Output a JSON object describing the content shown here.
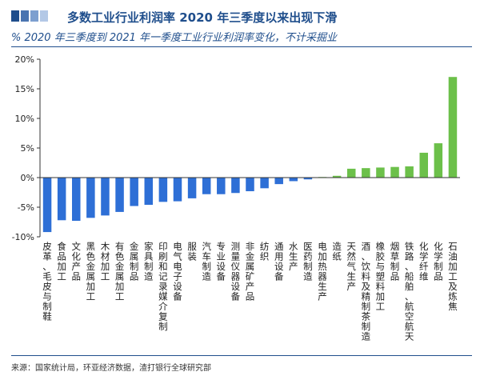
{
  "header": {
    "title": "多数工业行业利润率 2020 年三季度以来出现下滑",
    "subtitle": "% 2020 年三季度到 2021 年一季度工业行业利润率变化，不计采掘业",
    "logo_colors": [
      "#1f4e8c",
      "#4a74b0",
      "#7d9fcf",
      "#b3c8e6"
    ]
  },
  "footer": {
    "source": "来源：国家统计局，环亚经济数据，渣打银行全球研究部"
  },
  "colors": {
    "negative": "#2e6fd6",
    "positive": "#6cc04a",
    "title": "#1f4e8c"
  },
  "chart_data": {
    "type": "bar",
    "title": "",
    "xlabel": "",
    "ylabel": "",
    "ylim": [
      -10,
      20
    ],
    "yticks": [
      -10,
      -5,
      0,
      5,
      10,
      15,
      20
    ],
    "ytick_labels": [
      "-10%",
      "-5%",
      "0%",
      "5%",
      "10%",
      "15%",
      "20%"
    ],
    "grid": false,
    "categories": [
      "皮革、毛皮与制鞋",
      "食品加工",
      "文化产品",
      "黑色金属加工",
      "木材加工",
      "有色金属加工",
      "金属制品",
      "家具制造",
      "印刷和记录媒介复制",
      "电气电子设备",
      "服装",
      "汽车制造",
      "专业设备",
      "测量仪器设备",
      "非金属矿产品",
      "纺织",
      "通用设备",
      "水生产",
      "医药制造",
      "电加热器生产",
      "造纸",
      "天然气生产",
      "酒、饮料及精制茶制造",
      "橡胶与塑料加工",
      "烟草制品",
      "铁路、船舶、航空航天",
      "化学纤维",
      "化学制品",
      "石油加工及炼焦"
    ],
    "values": [
      -9.2,
      -7.2,
      -7.3,
      -6.8,
      -6.4,
      -5.8,
      -4.8,
      -4.6,
      -4.1,
      -4.0,
      -3.5,
      -2.8,
      -2.8,
      -2.6,
      -2.3,
      -1.8,
      -1.1,
      -0.6,
      -0.3,
      0.1,
      0.3,
      1.5,
      1.6,
      1.7,
      1.8,
      1.9,
      4.2,
      5.8,
      17.0
    ]
  }
}
